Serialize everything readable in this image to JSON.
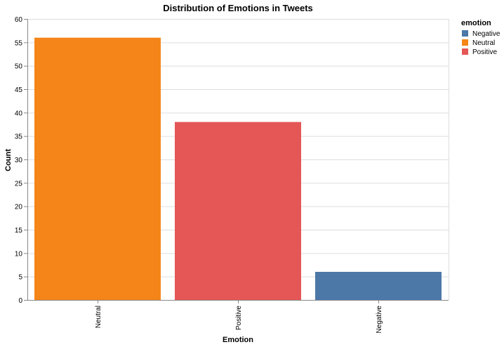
{
  "chart_data": {
    "type": "bar",
    "title": "Distribution of Emotions in Tweets",
    "xlabel": "Emotion",
    "ylabel": "Count",
    "categories": [
      "Neutral",
      "Positive",
      "Negative"
    ],
    "values": [
      56,
      38,
      6
    ],
    "bar_colors": [
      "#f58518",
      "#e45756",
      "#4c78a8"
    ],
    "ylim": [
      0,
      60
    ],
    "yticks": [
      0,
      5,
      10,
      15,
      20,
      25,
      30,
      35,
      40,
      45,
      50,
      55,
      60
    ],
    "grid": true,
    "legend": {
      "title": "emotion",
      "position": "top-right",
      "items": [
        {
          "label": "Negative",
          "color": "#4c78a8"
        },
        {
          "label": "Neutral",
          "color": "#f58518"
        },
        {
          "label": "Positive",
          "color": "#e45756"
        }
      ]
    }
  }
}
